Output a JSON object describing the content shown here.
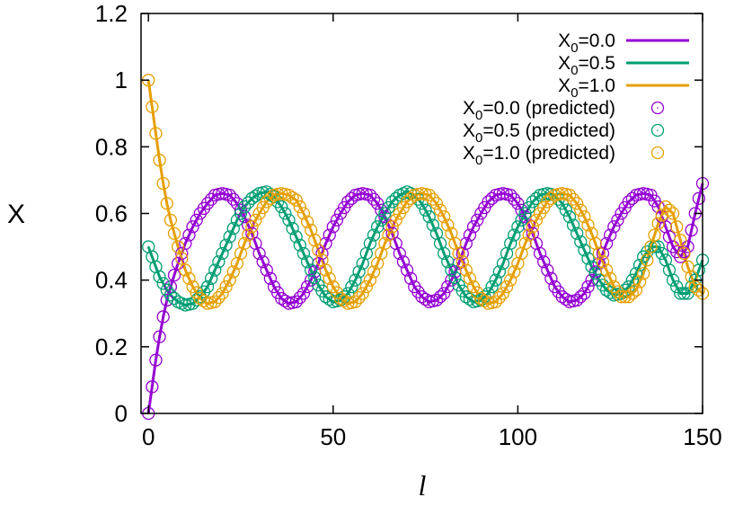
{
  "chart_data": {
    "type": "line",
    "xlabel": "l",
    "ylabel": "X",
    "xlim": [
      -2,
      150
    ],
    "ylim": [
      0,
      1.2
    ],
    "xticks": [
      "0",
      "50",
      "100",
      "150"
    ],
    "xtick_values": [
      0,
      50,
      100,
      150
    ],
    "yticks": [
      "0",
      "0.2",
      "0.4",
      "0.6",
      "0.8",
      "1",
      "1.2"
    ],
    "ytick_values": [
      0,
      0.2,
      0.4,
      0.6,
      0.8,
      1.0,
      1.2
    ],
    "grid": false,
    "legend_position": "top-right",
    "series": [
      {
        "name": "X_0=0.0",
        "label_main": "X",
        "label_sub": "0",
        "label_rest": "=0.0",
        "kind": "line",
        "color": "#9400D3",
        "x": [
          0,
          1,
          2,
          3,
          4,
          5,
          6,
          8,
          10,
          12,
          14,
          16,
          18,
          20,
          22,
          24,
          26,
          28,
          30,
          32,
          34,
          36,
          38,
          40,
          42,
          44,
          46,
          48,
          50,
          52,
          54,
          56,
          58,
          60,
          62,
          64,
          66,
          68,
          70,
          72,
          74,
          76,
          78,
          80,
          82,
          84,
          86,
          88,
          90,
          92,
          94,
          96,
          98,
          100,
          102,
          104,
          106,
          108,
          110,
          112,
          114,
          116,
          118,
          120,
          122,
          124,
          126,
          128,
          130,
          132,
          134,
          136,
          138,
          140,
          142,
          144,
          146,
          148,
          150
        ],
        "y": [
          0,
          0.08,
          0.16,
          0.23,
          0.29,
          0.34,
          0.38,
          0.45,
          0.51,
          0.56,
          0.6,
          0.63,
          0.655,
          0.66,
          0.655,
          0.63,
          0.59,
          0.54,
          0.48,
          0.43,
          0.38,
          0.345,
          0.33,
          0.335,
          0.36,
          0.4,
          0.45,
          0.51,
          0.56,
          0.6,
          0.635,
          0.655,
          0.66,
          0.655,
          0.63,
          0.59,
          0.54,
          0.48,
          0.43,
          0.38,
          0.35,
          0.335,
          0.34,
          0.36,
          0.4,
          0.45,
          0.51,
          0.56,
          0.6,
          0.635,
          0.655,
          0.66,
          0.655,
          0.63,
          0.59,
          0.54,
          0.48,
          0.43,
          0.38,
          0.35,
          0.335,
          0.34,
          0.36,
          0.4,
          0.45,
          0.51,
          0.56,
          0.6,
          0.635,
          0.655,
          0.66,
          0.655,
          0.62,
          0.56,
          0.5,
          0.47,
          0.5,
          0.6,
          0.69
        ]
      },
      {
        "name": "X_0=0.5",
        "label_main": "X",
        "label_sub": "0",
        "label_rest": "=0.5",
        "kind": "line",
        "color": "#009E73",
        "x": [
          0,
          1,
          2,
          3,
          4,
          5,
          6,
          8,
          10,
          12,
          14,
          16,
          18,
          20,
          22,
          24,
          26,
          28,
          30,
          32,
          34,
          36,
          38,
          40,
          42,
          44,
          46,
          48,
          50,
          52,
          54,
          56,
          58,
          60,
          62,
          64,
          66,
          68,
          70,
          72,
          74,
          76,
          78,
          80,
          82,
          84,
          86,
          88,
          90,
          92,
          94,
          96,
          98,
          100,
          102,
          104,
          106,
          108,
          110,
          112,
          114,
          116,
          118,
          120,
          122,
          124,
          126,
          128,
          130,
          132,
          134,
          136,
          138,
          140,
          142,
          144,
          146,
          148,
          150
        ],
        "y": [
          0.5,
          0.47,
          0.44,
          0.41,
          0.39,
          0.37,
          0.355,
          0.335,
          0.325,
          0.33,
          0.35,
          0.38,
          0.43,
          0.48,
          0.53,
          0.58,
          0.62,
          0.645,
          0.66,
          0.665,
          0.65,
          0.62,
          0.58,
          0.53,
          0.48,
          0.43,
          0.385,
          0.35,
          0.335,
          0.34,
          0.36,
          0.4,
          0.45,
          0.51,
          0.56,
          0.6,
          0.635,
          0.655,
          0.665,
          0.655,
          0.63,
          0.59,
          0.54,
          0.48,
          0.43,
          0.385,
          0.35,
          0.335,
          0.34,
          0.36,
          0.4,
          0.45,
          0.51,
          0.56,
          0.6,
          0.635,
          0.655,
          0.66,
          0.655,
          0.63,
          0.59,
          0.54,
          0.49,
          0.44,
          0.4,
          0.37,
          0.355,
          0.36,
          0.38,
          0.42,
          0.47,
          0.5,
          0.5,
          0.46,
          0.4,
          0.36,
          0.36,
          0.4,
          0.46
        ]
      },
      {
        "name": "X_0=1.0",
        "label_main": "X",
        "label_sub": "0",
        "label_rest": "=1.0",
        "kind": "line",
        "color": "#E69F00",
        "x": [
          0,
          1,
          2,
          3,
          4,
          5,
          6,
          8,
          10,
          12,
          14,
          16,
          18,
          20,
          22,
          24,
          26,
          28,
          30,
          32,
          34,
          36,
          38,
          40,
          42,
          44,
          46,
          48,
          50,
          52,
          54,
          56,
          58,
          60,
          62,
          64,
          66,
          68,
          70,
          72,
          74,
          76,
          78,
          80,
          82,
          84,
          86,
          88,
          90,
          92,
          94,
          96,
          98,
          100,
          102,
          104,
          106,
          108,
          110,
          112,
          114,
          116,
          118,
          120,
          122,
          124,
          126,
          128,
          130,
          132,
          134,
          136,
          138,
          140,
          142,
          144,
          146,
          148,
          150
        ],
        "y": [
          1.0,
          0.92,
          0.84,
          0.76,
          0.69,
          0.63,
          0.58,
          0.5,
          0.43,
          0.38,
          0.345,
          0.33,
          0.335,
          0.36,
          0.4,
          0.45,
          0.51,
          0.56,
          0.6,
          0.635,
          0.655,
          0.66,
          0.655,
          0.64,
          0.6,
          0.55,
          0.49,
          0.43,
          0.38,
          0.345,
          0.33,
          0.335,
          0.36,
          0.4,
          0.45,
          0.51,
          0.56,
          0.6,
          0.635,
          0.655,
          0.66,
          0.655,
          0.63,
          0.59,
          0.54,
          0.48,
          0.43,
          0.38,
          0.345,
          0.33,
          0.335,
          0.36,
          0.4,
          0.45,
          0.51,
          0.56,
          0.6,
          0.635,
          0.655,
          0.66,
          0.655,
          0.63,
          0.59,
          0.54,
          0.48,
          0.43,
          0.38,
          0.35,
          0.35,
          0.37,
          0.42,
          0.5,
          0.57,
          0.62,
          0.6,
          0.52,
          0.44,
          0.38,
          0.36
        ]
      },
      {
        "name": "X_0=0.0 (predicted)",
        "label_main": "X",
        "label_sub": "0",
        "label_rest": "=0.0 (predicted)",
        "kind": "markers",
        "color": "#9400D3",
        "ref": 0
      },
      {
        "name": "X_0=0.5 (predicted)",
        "label_main": "X",
        "label_sub": "0",
        "label_rest": "=0.5 (predicted)",
        "kind": "markers",
        "color": "#009E73",
        "ref": 1
      },
      {
        "name": "X_0=1.0 (predicted)",
        "label_main": "X",
        "label_sub": "0",
        "label_rest": "=1.0 (predicted)",
        "kind": "markers",
        "color": "#E69F00",
        "ref": 2
      }
    ]
  }
}
